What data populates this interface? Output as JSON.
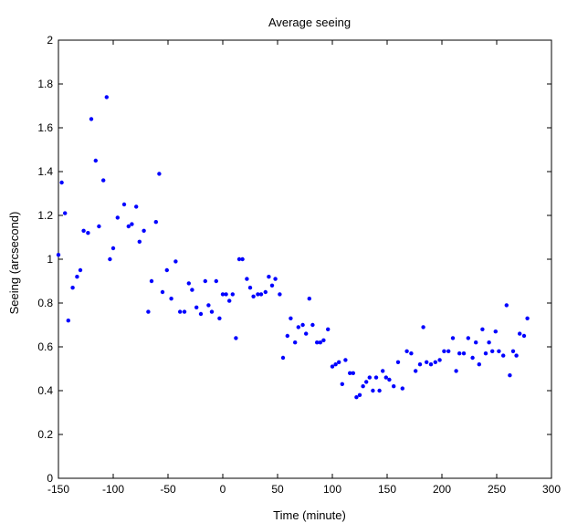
{
  "chart_data": {
    "type": "scatter",
    "title": "Average seeing",
    "xlabel": "Time (minute)",
    "ylabel": "Seeing (arcsecond)",
    "xlim": [
      -150,
      300
    ],
    "ylim": [
      0,
      2
    ],
    "xticks": [
      "-150",
      "-100",
      "-50",
      "0",
      "50",
      "100",
      "150",
      "200",
      "250",
      "300"
    ],
    "yticks": [
      "0",
      "0.2",
      "0.4",
      "0.6",
      "0.8",
      "1",
      "1.2",
      "1.4",
      "1.6",
      "1.8",
      "2"
    ],
    "grid": false,
    "marker_color": "#0000ff",
    "points": [
      [
        -150,
        1.02
      ],
      [
        -147,
        1.35
      ],
      [
        -144,
        1.21
      ],
      [
        -141,
        0.72
      ],
      [
        -137,
        0.87
      ],
      [
        -133,
        0.92
      ],
      [
        -130,
        0.95
      ],
      [
        -127,
        1.13
      ],
      [
        -123,
        1.12
      ],
      [
        -120,
        1.64
      ],
      [
        -116,
        1.45
      ],
      [
        -113,
        1.15
      ],
      [
        -109,
        1.36
      ],
      [
        -106,
        1.74
      ],
      [
        -103,
        1.0
      ],
      [
        -100,
        1.05
      ],
      [
        -96,
        1.19
      ],
      [
        -90,
        1.25
      ],
      [
        -86,
        1.15
      ],
      [
        -83,
        1.16
      ],
      [
        -79,
        1.24
      ],
      [
        -76,
        1.08
      ],
      [
        -72,
        1.13
      ],
      [
        -68,
        0.76
      ],
      [
        -65,
        0.9
      ],
      [
        -61,
        1.17
      ],
      [
        -58,
        1.39
      ],
      [
        -55,
        0.85
      ],
      [
        -51,
        0.95
      ],
      [
        -47,
        0.82
      ],
      [
        -43,
        0.99
      ],
      [
        -39,
        0.76
      ],
      [
        -35,
        0.76
      ],
      [
        -31,
        0.89
      ],
      [
        -28,
        0.86
      ],
      [
        -24,
        0.78
      ],
      [
        -20,
        0.75
      ],
      [
        -16,
        0.9
      ],
      [
        -13,
        0.79
      ],
      [
        -10,
        0.76
      ],
      [
        -6,
        0.9
      ],
      [
        -3,
        0.73
      ],
      [
        0,
        0.84
      ],
      [
        3,
        0.84
      ],
      [
        6,
        0.81
      ],
      [
        9,
        0.84
      ],
      [
        12,
        0.64
      ],
      [
        15,
        1.0
      ],
      [
        18,
        1.0
      ],
      [
        22,
        0.91
      ],
      [
        25,
        0.87
      ],
      [
        28,
        0.83
      ],
      [
        32,
        0.84
      ],
      [
        35,
        0.84
      ],
      [
        39,
        0.85
      ],
      [
        42,
        0.92
      ],
      [
        45,
        0.88
      ],
      [
        48,
        0.91
      ],
      [
        52,
        0.84
      ],
      [
        55,
        0.55
      ],
      [
        59,
        0.65
      ],
      [
        62,
        0.73
      ],
      [
        66,
        0.62
      ],
      [
        69,
        0.69
      ],
      [
        73,
        0.7
      ],
      [
        76,
        0.66
      ],
      [
        79,
        0.82
      ],
      [
        82,
        0.7
      ],
      [
        86,
        0.62
      ],
      [
        89,
        0.62
      ],
      [
        92,
        0.63
      ],
      [
        96,
        0.68
      ],
      [
        100,
        0.51
      ],
      [
        103,
        0.52
      ],
      [
        106,
        0.53
      ],
      [
        109,
        0.43
      ],
      [
        112,
        0.54
      ],
      [
        116,
        0.48
      ],
      [
        119,
        0.48
      ],
      [
        122,
        0.37
      ],
      [
        125,
        0.38
      ],
      [
        128,
        0.42
      ],
      [
        131,
        0.44
      ],
      [
        134,
        0.46
      ],
      [
        137,
        0.4
      ],
      [
        140,
        0.46
      ],
      [
        143,
        0.4
      ],
      [
        146,
        0.49
      ],
      [
        149,
        0.46
      ],
      [
        152,
        0.45
      ],
      [
        156,
        0.42
      ],
      [
        160,
        0.53
      ],
      [
        164,
        0.41
      ],
      [
        168,
        0.58
      ],
      [
        172,
        0.57
      ],
      [
        176,
        0.49
      ],
      [
        180,
        0.52
      ],
      [
        183,
        0.69
      ],
      [
        186,
        0.53
      ],
      [
        190,
        0.52
      ],
      [
        194,
        0.53
      ],
      [
        198,
        0.54
      ],
      [
        202,
        0.58
      ],
      [
        206,
        0.58
      ],
      [
        210,
        0.64
      ],
      [
        213,
        0.49
      ],
      [
        216,
        0.57
      ],
      [
        220,
        0.57
      ],
      [
        224,
        0.64
      ],
      [
        228,
        0.55
      ],
      [
        231,
        0.62
      ],
      [
        234,
        0.52
      ],
      [
        237,
        0.68
      ],
      [
        240,
        0.57
      ],
      [
        243,
        0.62
      ],
      [
        246,
        0.58
      ],
      [
        249,
        0.67
      ],
      [
        252,
        0.58
      ],
      [
        256,
        0.56
      ],
      [
        259,
        0.79
      ],
      [
        262,
        0.47
      ],
      [
        265,
        0.58
      ],
      [
        268,
        0.56
      ],
      [
        271,
        0.66
      ],
      [
        275,
        0.65
      ],
      [
        278,
        0.73
      ]
    ]
  }
}
